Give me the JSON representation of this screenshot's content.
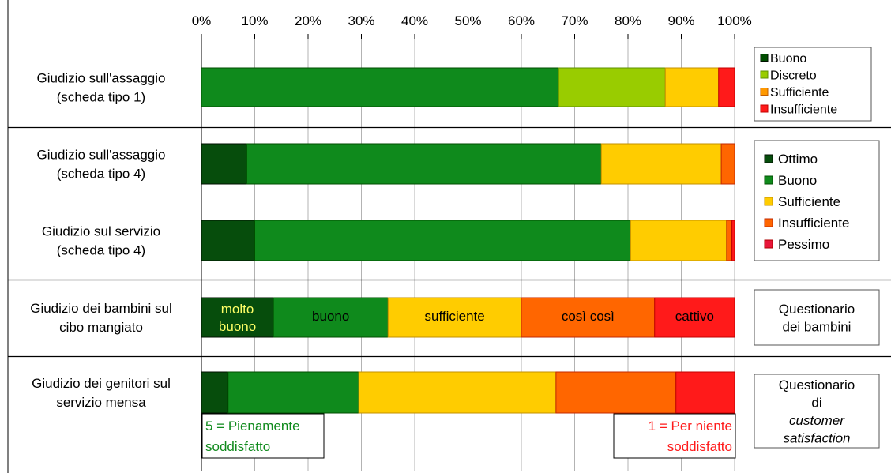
{
  "chart_data": {
    "type": "bar",
    "orientation": "horizontal",
    "stacked": true,
    "normalized": true,
    "xlim": [
      0,
      100
    ],
    "ticks": [
      "0%",
      "10%",
      "20%",
      "30%",
      "40%",
      "50%",
      "60%",
      "70%",
      "80%",
      "90%",
      "100%"
    ],
    "grid": true,
    "groups": [
      {
        "bars": [
          {
            "label": [
              "Giudizio sull'assaggio",
              "(scheda tipo 1)"
            ],
            "segments": [
              {
                "name": "Buono",
                "value": 67,
                "color": "#0f8a1c"
              },
              {
                "name": "Discreto",
                "value": 20,
                "color": "#99cc00"
              },
              {
                "name": "Sufficiente",
                "value": 10,
                "color": "#ffcc00"
              },
              {
                "name": "Insufficiente",
                "value": 3,
                "color": "#ff1a1a"
              }
            ]
          }
        ],
        "legend": {
          "kind": "series",
          "items": [
            {
              "name": "Buono",
              "color": "#004d00"
            },
            {
              "name": "Discreto",
              "color": "#99cc00"
            },
            {
              "name": "Sufficiente",
              "color": "#ff9900"
            },
            {
              "name": "Insufficiente",
              "color": "#ff1a1a"
            }
          ]
        }
      },
      {
        "bars": [
          {
            "label": [
              "Giudizio sull'assaggio",
              "(scheda tipo 4)"
            ],
            "segments": [
              {
                "name": "Ottimo",
                "value": 8.5,
                "color": "#064d0c"
              },
              {
                "name": "Buono",
                "value": 66.5,
                "color": "#0f8a1c"
              },
              {
                "name": "Sufficiente",
                "value": 22.5,
                "color": "#ffcc00"
              },
              {
                "name": "Insufficiente",
                "value": 2.5,
                "color": "#ff6600"
              }
            ]
          },
          {
            "label": [
              "Giudizio sul servizio",
              "(scheda tipo 4)"
            ],
            "segments": [
              {
                "name": "Ottimo",
                "value": 10,
                "color": "#064d0c"
              },
              {
                "name": "Buono",
                "value": 70.5,
                "color": "#0f8a1c"
              },
              {
                "name": "Sufficiente",
                "value": 18,
                "color": "#ffcc00"
              },
              {
                "name": "Insufficiente",
                "value": 1,
                "color": "#ff6600"
              },
              {
                "name": "Pessimo",
                "value": 0.5,
                "color": "#ff1a1a"
              }
            ]
          }
        ],
        "legend": {
          "kind": "series",
          "items": [
            {
              "name": "Ottimo",
              "color": "#064d0c"
            },
            {
              "name": "Buono",
              "color": "#0f8a1c"
            },
            {
              "name": "Sufficiente",
              "color": "#ffcc00"
            },
            {
              "name": "Insufficiente",
              "color": "#ff6600"
            },
            {
              "name": "Pessimo",
              "color": "#e8163a"
            }
          ]
        }
      },
      {
        "bars": [
          {
            "label": [
              "Giudizio dei bambini sul",
              "cibo mangiato"
            ],
            "segments": [
              {
                "name": [
                  "molto",
                  "buono"
                ],
                "value": 13.5,
                "color": "#064d0c",
                "text_color": "#ffff66"
              },
              {
                "name": [
                  "buono"
                ],
                "value": 21.5,
                "color": "#0f8a1c",
                "text_color": "#000000"
              },
              {
                "name": [
                  "sufficiente"
                ],
                "value": 25,
                "color": "#ffcc00",
                "text_color": "#000000"
              },
              {
                "name": [
                  "così così"
                ],
                "value": 25,
                "color": "#ff6600",
                "text_color": "#000000"
              },
              {
                "name": [
                  "cattivo"
                ],
                "value": 15,
                "color": "#ff1a1a",
                "text_color": "#000000"
              }
            ]
          }
        ],
        "legend": {
          "kind": "note",
          "lines": [
            "Questionario",
            "dei bambini"
          ]
        }
      },
      {
        "bars": [
          {
            "label": [
              "Giudizio dei genitori sul",
              "servizio mensa"
            ],
            "segments": [
              {
                "value": 5,
                "color": "#064d0c"
              },
              {
                "value": 24.5,
                "color": "#0f8a1c"
              },
              {
                "value": 37,
                "color": "#ffcc00"
              },
              {
                "value": 22.5,
                "color": "#ff6600"
              },
              {
                "value": 11,
                "color": "#ff1a1a"
              }
            ],
            "annotations": [
              {
                "lines": [
                  "5 = Pienamente",
                  "soddisfatto"
                ],
                "color": "#0f8a1c",
                "position": "bottom-left"
              },
              {
                "lines": [
                  "1 = Per niente",
                  "soddisfatto"
                ],
                "color": "#ff1a1a",
                "position": "bottom-right"
              }
            ]
          }
        ],
        "legend": {
          "kind": "note",
          "lines": [
            "Questionario",
            "di",
            "customer",
            "satisfaction"
          ],
          "italic_lines": [
            2,
            3
          ]
        }
      }
    ]
  }
}
